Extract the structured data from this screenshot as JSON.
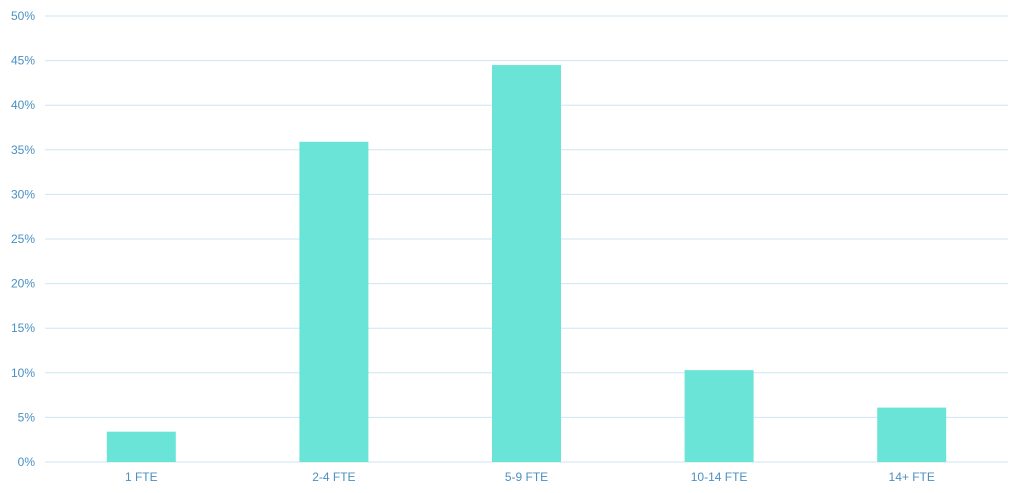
{
  "chart_data": {
    "type": "bar",
    "categories": [
      "1 FTE",
      "2-4 FTE",
      "5-9 FTE",
      "10-14 FTE",
      "14+ FTE"
    ],
    "values": [
      3.4,
      35.9,
      44.5,
      10.3,
      6.1
    ],
    "y_ticks": [
      "0%",
      "5%",
      "10%",
      "15%",
      "20%",
      "25%",
      "30%",
      "35%",
      "40%",
      "45%",
      "50%"
    ],
    "ylim": [
      0,
      50
    ],
    "y_unit": "%",
    "grid": true,
    "legend": "none",
    "colors": {
      "bar": "#6ae4d6",
      "grid": "#cde6f2",
      "label": "#4a90c2"
    }
  }
}
